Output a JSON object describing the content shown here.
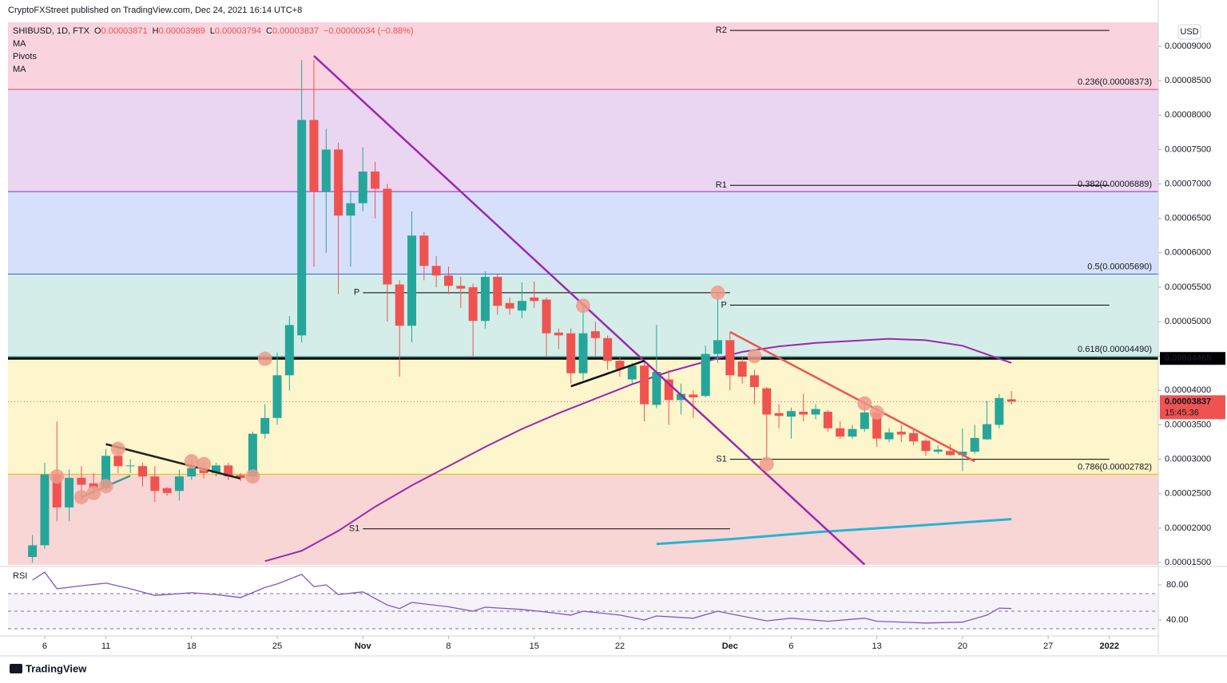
{
  "header": {
    "published": "CryptoFXStreet published on TradingView.com, Dec 24, 2021 16:14 UTC+8",
    "indicators": [
      "MA",
      "Pivots",
      "MA"
    ],
    "currency": "USD",
    "countdown": "15:45:36",
    "brand": "TradingView"
  },
  "chart_data": {
    "type": "candlestick",
    "symbol": "SHIBUSD, 1D, FTX",
    "ohlc_labels": [
      "O",
      "H",
      "L",
      "C"
    ],
    "change": "−0.00000034 (−0.88%)",
    "up_color": "#26a69a",
    "down_color": "#ef5350",
    "x": [
      "2021-10-05",
      "2021-10-06",
      "2021-10-07",
      "2021-10-08",
      "2021-10-09",
      "2021-10-10",
      "2021-10-11",
      "2021-10-12",
      "2021-10-13",
      "2021-10-14",
      "2021-10-15",
      "2021-10-16",
      "2021-10-17",
      "2021-10-18",
      "2021-10-19",
      "2021-10-20",
      "2021-10-21",
      "2021-10-22",
      "2021-10-23",
      "2021-10-24",
      "2021-10-25",
      "2021-10-26",
      "2021-10-27",
      "2021-10-28",
      "2021-10-29",
      "2021-10-30",
      "2021-10-31",
      "2021-11-01",
      "2021-11-02",
      "2021-11-03",
      "2021-11-04",
      "2021-11-05",
      "2021-11-06",
      "2021-11-07",
      "2021-11-08",
      "2021-11-09",
      "2021-11-10",
      "2021-11-11",
      "2021-11-12",
      "2021-11-13",
      "2021-11-14",
      "2021-11-15",
      "2021-11-16",
      "2021-11-17",
      "2021-11-18",
      "2021-11-19",
      "2021-11-20",
      "2021-11-21",
      "2021-11-22",
      "2021-11-23",
      "2021-11-24",
      "2021-11-25",
      "2021-11-26",
      "2021-11-27",
      "2021-11-28",
      "2021-11-29",
      "2021-11-30",
      "2021-12-01",
      "2021-12-02",
      "2021-12-03",
      "2021-12-04",
      "2021-12-05",
      "2021-12-06",
      "2021-12-07",
      "2021-12-08",
      "2021-12-09",
      "2021-12-10",
      "2021-12-11",
      "2021-12-12",
      "2021-12-13",
      "2021-12-14",
      "2021-12-15",
      "2021-12-16",
      "2021-12-17",
      "2021-12-18",
      "2021-12-19",
      "2021-12-20",
      "2021-12-21",
      "2021-12-22",
      "2021-12-23",
      "2021-12-24"
    ],
    "open": [
      1.58e-05,
      1.75e-05,
      2.78e-05,
      2.3e-05,
      2.73e-05,
      2.65e-05,
      2.58e-05,
      3.05e-05,
      2.9e-05,
      2.9e-05,
      2.75e-05,
      2.58e-05,
      2.54e-05,
      2.75e-05,
      2.87e-05,
      2.8e-05,
      2.91e-05,
      2.77e-05,
      2.75e-05,
      3.37e-05,
      3.6e-05,
      4.22e-05,
      4.8e-05,
      7.93e-05,
      6.89e-05,
      7.5e-05,
      6.54e-05,
      6.72e-05,
      7.18e-05,
      6.93e-05,
      5.54e-05,
      4.94e-05,
      6.25e-05,
      5.81e-05,
      5.67e-05,
      5.52e-05,
      5.5e-05,
      5.01e-05,
      5.65e-05,
      5.27e-05,
      5.16e-05,
      5.35e-05,
      5.32e-05,
      4.84e-05,
      4.83e-05,
      4.25e-05,
      4.86e-05,
      4.76e-05,
      4.43e-05,
      4.16e-05,
      4.36e-05,
      3.79e-05,
      4.16e-05,
      3.86e-05,
      3.94e-05,
      3.92e-05,
      4.53e-05,
      4.73e-05,
      4.42e-05,
      4.22e-05,
      4.03e-05,
      3.67e-05,
      3.62e-05,
      3.69e-05,
      3.65e-05,
      3.69e-05,
      3.45e-05,
      3.33e-05,
      3.44e-05,
      3.68e-05,
      3.29e-05,
      3.4e-05,
      3.38e-05,
      3.27e-05,
      3.11e-05,
      3.12e-05,
      3.06e-05,
      3.11e-05,
      3.29e-05,
      3.5e-05,
      3.871e-05
    ],
    "high": [
      1.9e-05,
      2.95e-05,
      3.55e-05,
      2.85e-05,
      2.9e-05,
      2.8e-05,
      3.15e-05,
      3.2e-05,
      3e-05,
      2.95e-05,
      2.9e-05,
      2.6e-05,
      2.85e-05,
      3e-05,
      2.95e-05,
      2.95e-05,
      2.95e-05,
      2.8e-05,
      3.4e-05,
      3.8e-05,
      4.55e-05,
      5.08e-05,
      8.8e-05,
      8.8e-05,
      7.8e-05,
      7.6e-05,
      6.9e-05,
      7.53e-05,
      7.32e-05,
      7e-05,
      5.6e-05,
      6.6e-05,
      6.3e-05,
      5.95e-05,
      5.8e-05,
      5.65e-05,
      5.55e-05,
      5.73e-05,
      5.7e-05,
      5.35e-05,
      5.57e-05,
      5.58e-05,
      5.35e-05,
      4.9e-05,
      4.9e-05,
      5.25e-05,
      5e-05,
      4.8e-05,
      4.5e-05,
      4.4e-05,
      4.45e-05,
      4.95e-05,
      4.3e-05,
      4.1e-05,
      4e-05,
      4.65e-05,
      5.4e-05,
      4.85e-05,
      4.5e-05,
      4.3e-05,
      4.05e-05,
      3.8e-05,
      3.75e-05,
      3.95e-05,
      3.8e-05,
      3.72e-05,
      3.55e-05,
      3.5e-05,
      3.8e-05,
      3.75e-05,
      3.45e-05,
      3.5e-05,
      3.45e-05,
      3.3e-05,
      3.2e-05,
      3.22e-05,
      3.45e-05,
      3.5e-05,
      3.85e-05,
      3.95e-05,
      3.989e-05
    ],
    "low": [
      1.5e-05,
      1.7e-05,
      2.1e-05,
      2.1e-05,
      2.4e-05,
      2.5e-05,
      2.55e-05,
      2.8e-05,
      2.8e-05,
      2.6e-05,
      2.38e-05,
      2.47e-05,
      2.4e-05,
      2.7e-05,
      2.72e-05,
      2.75e-05,
      2.7e-05,
      2.68e-05,
      2.7e-05,
      3.3e-05,
      3.5e-05,
      4e-05,
      4.7e-05,
      5.8e-05,
      6e-05,
      5.4e-05,
      5.8e-05,
      6.6e-05,
      6.5e-05,
      5e-05,
      4.2e-05,
      4.7e-05,
      5.6e-05,
      5.5e-05,
      5.4e-05,
      5.2e-05,
      4.5e-05,
      4.9e-05,
      5.1e-05,
      5.1e-05,
      5.05e-05,
      5.2e-05,
      4.5e-05,
      4.6e-05,
      4.1e-05,
      4.15e-05,
      4.5e-05,
      4.3e-05,
      4.2e-05,
      4.1e-05,
      3.55e-05,
      3.74e-05,
      3.5e-05,
      3.65e-05,
      3.6e-05,
      3.9e-05,
      4.4e-05,
      4e-05,
      4.1e-05,
      3.8e-05,
      3e-05,
      3.45e-05,
      3.3e-05,
      3.55e-05,
      3.58e-05,
      3.4e-05,
      3.3e-05,
      3.3e-05,
      3.4e-05,
      3.18e-05,
      3.25e-05,
      3.25e-05,
      3.2e-05,
      3.05e-05,
      3.08e-05,
      3.05e-05,
      2.83e-05,
      3.08e-05,
      3.28e-05,
      3.45e-05,
      3.794e-05
    ],
    "close": [
      1.75e-05,
      2.78e-05,
      2.3e-05,
      2.73e-05,
      2.63e-05,
      2.58e-05,
      3.05e-05,
      2.9e-05,
      2.91e-05,
      2.75e-05,
      2.54e-05,
      2.51e-05,
      2.75e-05,
      2.87e-05,
      2.8e-05,
      2.91e-05,
      2.75e-05,
      2.73e-05,
      3.37e-05,
      3.6e-05,
      4.22e-05,
      4.95e-05,
      7.93e-05,
      6.89e-05,
      7.5e-05,
      6.54e-05,
      6.72e-05,
      7.18e-05,
      6.93e-05,
      5.54e-05,
      4.94e-05,
      6.25e-05,
      5.81e-05,
      5.67e-05,
      5.52e-05,
      5.48e-05,
      5.01e-05,
      5.65e-05,
      5.23e-05,
      5.19e-05,
      5.3e-05,
      5.3e-05,
      4.83e-05,
      4.8e-05,
      4.25e-05,
      4.83e-05,
      4.76e-05,
      4.43e-05,
      4.31e-05,
      4.36e-05,
      3.8e-05,
      4.27e-05,
      3.86e-05,
      3.95e-05,
      3.9e-05,
      4.53e-05,
      4.73e-05,
      4.22e-05,
      4.2e-05,
      4.05e-05,
      3.65e-05,
      3.63e-05,
      3.7e-05,
      3.65e-05,
      3.73e-05,
      3.45e-05,
      3.33e-05,
      3.44e-05,
      3.68e-05,
      3.3e-05,
      3.39e-05,
      3.36e-05,
      3.26e-05,
      3.12e-05,
      3.14e-05,
      3.06e-05,
      3.11e-05,
      3.31e-05,
      3.51e-05,
      3.89e-05,
      3.837e-05
    ],
    "xlim": [
      "2021-10-03",
      "2022-01-05"
    ],
    "xticks": [
      {
        "value": "2021-10-06",
        "label": "6"
      },
      {
        "value": "2021-10-11",
        "label": "11"
      },
      {
        "value": "2021-10-18",
        "label": "18"
      },
      {
        "value": "2021-10-25",
        "label": "25"
      },
      {
        "value": "2021-11-01",
        "label": "Nov"
      },
      {
        "value": "2021-11-08",
        "label": "8"
      },
      {
        "value": "2021-11-15",
        "label": "15"
      },
      {
        "value": "2021-11-22",
        "label": "22"
      },
      {
        "value": "2021-12-01",
        "label": "Dec"
      },
      {
        "value": "2021-12-06",
        "label": "6"
      },
      {
        "value": "2021-12-13",
        "label": "13"
      },
      {
        "value": "2021-12-20",
        "label": "20"
      },
      {
        "value": "2021-12-27",
        "label": "27"
      },
      {
        "value": "2022-01-01",
        "label": "2022"
      }
    ],
    "ylim": [
      1.465e-05,
      9.348e-05
    ],
    "yticks": [
      {
        "value": 1.5e-05,
        "label": "0.00001500"
      },
      {
        "value": 2e-05,
        "label": "0.00002000"
      },
      {
        "value": 2.5e-05,
        "label": "0.00002500"
      },
      {
        "value": 3e-05,
        "label": "0.00003000"
      },
      {
        "value": 3.5e-05,
        "label": "0.00003500"
      },
      {
        "value": 4e-05,
        "label": "0.00004000"
      },
      {
        "value": 4.5e-05,
        "label": "0.00004500"
      },
      {
        "value": 5e-05,
        "label": "0.00005000"
      },
      {
        "value": 5.5e-05,
        "label": "0.00005500"
      },
      {
        "value": 6e-05,
        "label": "0.00006000"
      },
      {
        "value": 6.5e-05,
        "label": "0.00006500"
      },
      {
        "value": 7e-05,
        "label": "0.00007000"
      },
      {
        "value": 7.5e-05,
        "label": "0.00007500"
      },
      {
        "value": 8e-05,
        "label": "0.00008000"
      },
      {
        "value": 8.5e-05,
        "label": "0.00008500"
      },
      {
        "value": 9e-05,
        "label": "0.00009000"
      }
    ],
    "fib_fills": [
      "#f9d3de",
      "#ead6f0",
      "#d6e0fa",
      "#d4ede8",
      "#fdf5cb",
      "#f9d6d6"
    ],
    "fib_levels": [
      {
        "price": 8.373e-05,
        "label": "0.236(0.00008373)",
        "color": "#e0457b"
      },
      {
        "price": 6.889e-05,
        "label": "0.382(0.00006889)",
        "color": "#9c27b0"
      },
      {
        "price": 5.69e-05,
        "label": "0.5(0.00005690)",
        "color": "#2962ff"
      },
      {
        "price": 4.49e-05,
        "label": "0.618(0.00004490)",
        "color": "#009688"
      },
      {
        "price": 2.782e-05,
        "label": "0.786(0.00002782)",
        "color": "#e6b800"
      }
    ],
    "pivots": [
      {
        "label": "R2",
        "price": 9.23e-05,
        "from": "2021-12-01",
        "to": "2022-01-01"
      },
      {
        "label": "R1",
        "price": 6.98e-05,
        "from": "2021-12-01",
        "to": "2022-01-01"
      },
      {
        "label": "P",
        "price": 5.42e-05,
        "from": "2021-11-01",
        "to": "2021-12-01"
      },
      {
        "label": "S1",
        "price": 1.99e-05,
        "from": "2021-11-01",
        "to": "2021-12-01"
      },
      {
        "label": "P",
        "price": 5.24e-05,
        "from": "2021-12-01",
        "to": "2022-01-01"
      },
      {
        "label": "S1",
        "price": 3e-05,
        "from": "2021-12-01",
        "to": "2022-01-01"
      }
    ],
    "key_level": {
      "price": 4.465e-05,
      "color": "#000000"
    },
    "moving_averages": [
      {
        "color": "#9c27b0",
        "x": [
          "2021-10-24",
          "2021-10-27",
          "2021-10-30",
          "2021-11-02",
          "2021-11-05",
          "2021-11-08",
          "2021-11-11",
          "2021-11-14",
          "2021-11-17",
          "2021-11-20",
          "2021-11-23",
          "2021-11-26",
          "2021-11-29",
          "2021-12-02",
          "2021-12-05",
          "2021-12-08",
          "2021-12-11",
          "2021-12-14",
          "2021-12-17",
          "2021-12-20",
          "2021-12-23",
          "2021-12-24"
        ],
        "values": [
          1.52e-05,
          1.67e-05,
          1.96e-05,
          2.31e-05,
          2.62e-05,
          2.9e-05,
          3.18e-05,
          3.44e-05,
          3.67e-05,
          3.88e-05,
          4.09e-05,
          4.27e-05,
          4.42e-05,
          4.56e-05,
          4.64e-05,
          4.69e-05,
          4.72e-05,
          4.75e-05,
          4.73e-05,
          4.65e-05,
          4.46e-05,
          4.4e-05
        ]
      },
      {
        "color": "#26b5d4",
        "x": [
          "2021-11-25",
          "2021-12-01",
          "2021-12-08",
          "2021-12-15",
          "2021-12-24"
        ],
        "values": [
          1.77e-05,
          1.84e-05,
          1.94e-05,
          2.02e-05,
          2.13e-05
        ]
      }
    ],
    "trendlines": [
      {
        "from": "2021-10-28",
        "from_price": 8.86e-05,
        "to": "2021-12-12",
        "to_price": 1.47e-05,
        "color": "#9c27b0"
      },
      {
        "from": "2021-12-01",
        "from_price": 4.85e-05,
        "to": "2021-12-21",
        "to_price": 2.97e-05,
        "color": "#ef5350"
      },
      {
        "from": "2021-10-11",
        "from_price": 3.22e-05,
        "to": "2021-10-22",
        "to_price": 2.72e-05,
        "color": "#222222"
      },
      {
        "from": "2021-10-09",
        "from_price": 2.45e-05,
        "to": "2021-10-13",
        "to_price": 2.76e-05,
        "color": "#3d9e8a"
      },
      {
        "from": "2021-11-18",
        "from_price": 4.06e-05,
        "to": "2021-11-24",
        "to_price": 4.43e-05,
        "color": "#111111"
      }
    ],
    "highlights": {
      "color": "#ef9a8a",
      "x": [
        "2021-10-07",
        "2021-10-09",
        "2021-10-10",
        "2021-10-11",
        "2021-10-12",
        "2021-10-18",
        "2021-10-19",
        "2021-10-23",
        "2021-10-24",
        "2021-11-19",
        "2021-11-30",
        "2021-12-03",
        "2021-12-04",
        "2021-12-12",
        "2021-12-13"
      ],
      "values": [
        2.75e-05,
        2.45e-05,
        2.51e-05,
        2.61e-05,
        3.15e-05,
        2.97e-05,
        2.93e-05,
        2.75e-05,
        4.46e-05,
        5.23e-05,
        5.42e-05,
        4.5e-05,
        2.93e-05,
        3.81e-05,
        3.68e-05
      ]
    },
    "rsi": {
      "label": "RSI",
      "color": "#7e57c2",
      "ylim": [
        23.6,
        99.1
      ],
      "yticks": [
        {
          "value": 80,
          "label": "80.00"
        },
        {
          "value": 40,
          "label": "40.00"
        }
      ],
      "levels": [
        70,
        50,
        30
      ],
      "x": [
        "2021-10-05",
        "2021-10-06",
        "2021-10-07",
        "2021-10-09",
        "2021-10-11",
        "2021-10-13",
        "2021-10-15",
        "2021-10-18",
        "2021-10-20",
        "2021-10-22",
        "2021-10-24",
        "2021-10-25",
        "2021-10-27",
        "2021-10-28",
        "2021-10-29",
        "2021-10-30",
        "2021-11-01",
        "2021-11-03",
        "2021-11-04",
        "2021-11-05",
        "2021-11-08",
        "2021-11-10",
        "2021-11-11",
        "2021-11-14",
        "2021-11-16",
        "2021-11-18",
        "2021-11-19",
        "2021-11-22",
        "2021-11-24",
        "2021-11-25",
        "2021-11-28",
        "2021-11-30",
        "2021-12-01",
        "2021-12-04",
        "2021-12-06",
        "2021-12-09",
        "2021-12-12",
        "2021-12-13",
        "2021-12-17",
        "2021-12-20",
        "2021-12-22",
        "2021-12-23",
        "2021-12-24"
      ],
      "values": [
        85.5,
        94.5,
        75.5,
        79,
        82,
        75.5,
        68,
        71,
        69,
        65.5,
        77,
        81,
        92,
        78,
        80,
        69,
        72,
        57,
        53,
        60,
        55,
        50,
        54.5,
        52,
        49,
        45.5,
        50,
        45.5,
        40,
        44.5,
        42,
        50,
        47,
        39,
        42,
        38.5,
        42,
        38.5,
        36.5,
        37.5,
        45.5,
        53.5,
        53
      ]
    }
  }
}
